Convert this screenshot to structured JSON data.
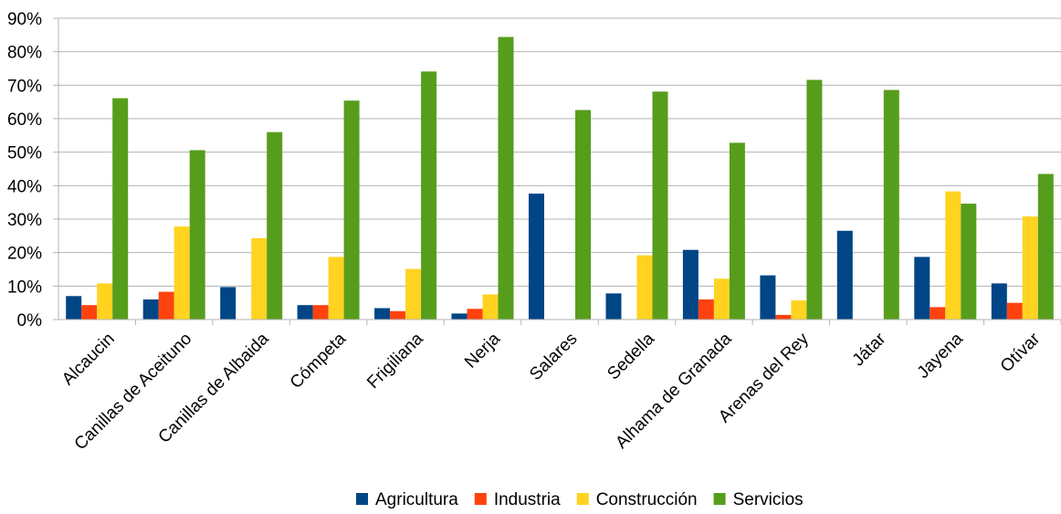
{
  "chart_data": {
    "type": "bar",
    "title": "",
    "xlabel": "",
    "ylabel": "",
    "ylim": [
      0,
      90
    ],
    "yticks": [
      "0%",
      "10%",
      "20%",
      "30%",
      "40%",
      "50%",
      "60%",
      "70%",
      "80%",
      "90%"
    ],
    "grid": "horizontal",
    "legend_position": "bottom",
    "categories": [
      "Alcaucin",
      "Canillas de Aceituno",
      "Canillas de Albaida",
      "Cómpeta",
      "Frigiliana",
      "Nerja",
      "Salares",
      "Sedella",
      "Alhama de Granada",
      "Arenas del Rey",
      "Játar",
      "Jayena",
      "Otívar"
    ],
    "series": [
      {
        "name": "Agricultura",
        "color": "#004586",
        "values": [
          7.0,
          6.0,
          9.7,
          4.3,
          3.4,
          1.8,
          37.6,
          7.8,
          20.8,
          13.2,
          26.5,
          18.7,
          10.8
        ]
      },
      {
        "name": "Industria",
        "color": "#ff420e",
        "values": [
          4.3,
          8.3,
          0,
          4.3,
          2.5,
          3.2,
          0,
          0,
          6.0,
          1.4,
          0,
          3.7,
          5.0
        ]
      },
      {
        "name": "Construcción",
        "color": "#ffd320",
        "values": [
          10.8,
          27.8,
          24.3,
          18.7,
          15.1,
          7.5,
          0,
          19.2,
          12.2,
          5.7,
          0,
          38.3,
          30.8
        ]
      },
      {
        "name": "Servicios",
        "color": "#579d1c",
        "values": [
          66.1,
          50.6,
          56.0,
          65.4,
          74.1,
          84.4,
          62.6,
          68.1,
          52.8,
          71.6,
          68.6,
          34.6,
          43.5
        ]
      }
    ]
  }
}
